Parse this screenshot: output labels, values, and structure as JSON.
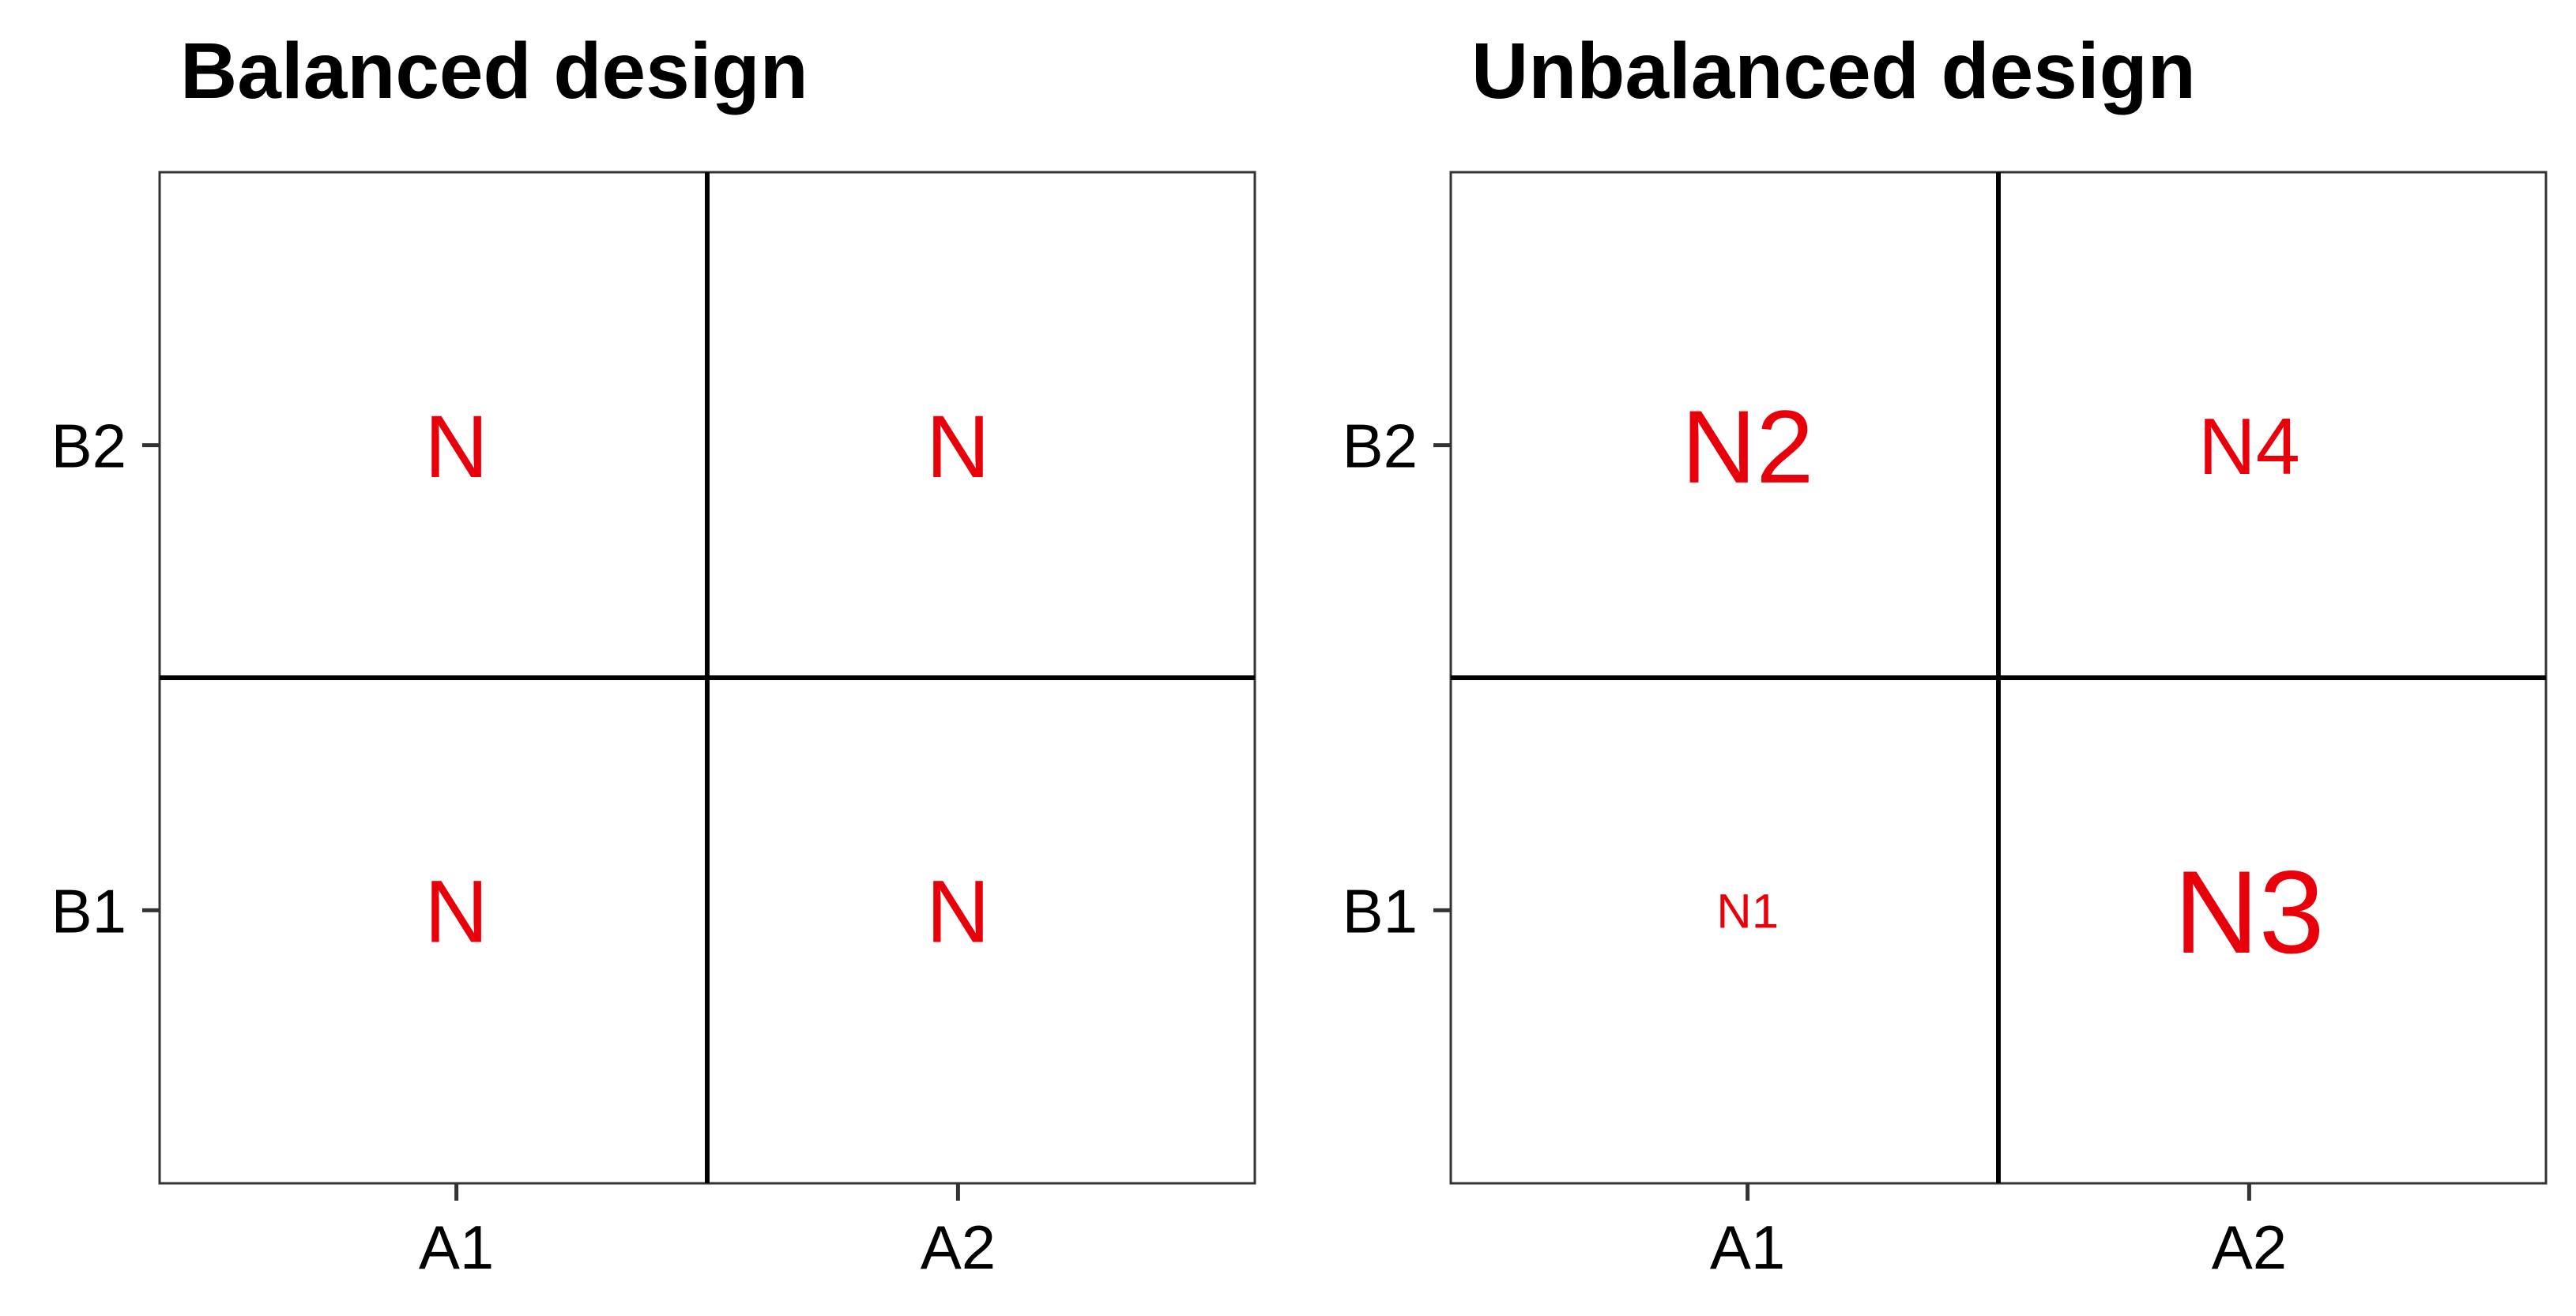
{
  "colors": {
    "cell_label": "#e8000b",
    "lines": "#000000",
    "background": "#ffffff"
  },
  "panels": [
    {
      "title": "Balanced design",
      "x_categories": [
        "A1",
        "A2"
      ],
      "y_categories": [
        "B2",
        "B1"
      ],
      "cells": [
        {
          "row": "B2",
          "col": "A1",
          "label": "N",
          "relative_size": 1.0
        },
        {
          "row": "B2",
          "col": "A2",
          "label": "N",
          "relative_size": 1.0
        },
        {
          "row": "B1",
          "col": "A1",
          "label": "N",
          "relative_size": 1.0
        },
        {
          "row": "B1",
          "col": "A2",
          "label": "N",
          "relative_size": 1.0
        }
      ]
    },
    {
      "title": "Unbalanced design",
      "x_categories": [
        "A1",
        "A2"
      ],
      "y_categories": [
        "B2",
        "B1"
      ],
      "cells": [
        {
          "row": "B2",
          "col": "A1",
          "label": "N2",
          "relative_size": 1.17
        },
        {
          "row": "B2",
          "col": "A2",
          "label": "N4",
          "relative_size": 0.9
        },
        {
          "row": "B1",
          "col": "A1",
          "label": "N1",
          "relative_size": 0.55
        },
        {
          "row": "B1",
          "col": "A2",
          "label": "N3",
          "relative_size": 1.33
        }
      ]
    }
  ]
}
